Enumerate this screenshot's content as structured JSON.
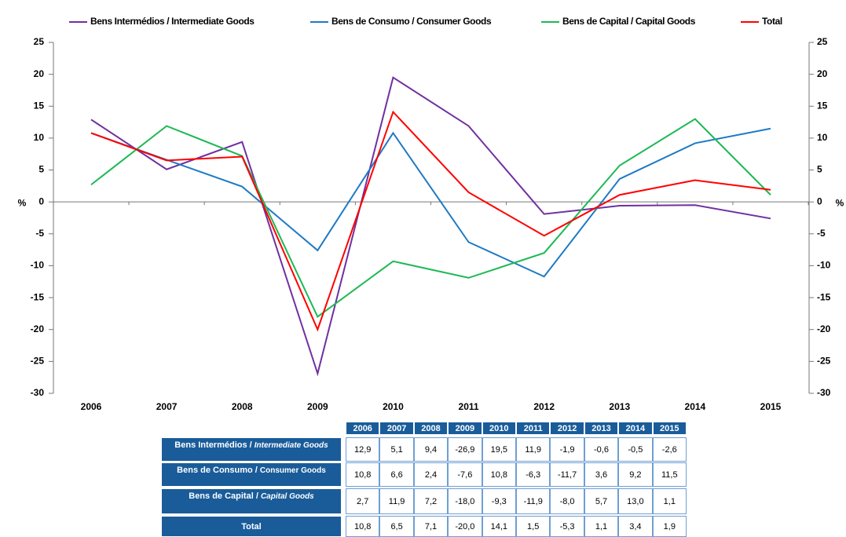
{
  "chart_data": {
    "type": "line",
    "categories": [
      "2006",
      "2007",
      "2008",
      "2009",
      "2010",
      "2011",
      "2012",
      "2013",
      "2014",
      "2015"
    ],
    "ylabel": "%",
    "y2label": "%",
    "ylim": [
      -30,
      25
    ],
    "yticks": [
      -30,
      -25,
      -20,
      -15,
      -10,
      -5,
      0,
      5,
      10,
      15,
      20,
      25
    ],
    "y2lim": [
      -30,
      25
    ],
    "y2ticks": [
      -30,
      -25,
      -20,
      -15,
      -10,
      -5,
      0,
      5,
      10,
      15,
      20,
      25
    ],
    "legend": "top",
    "series": [
      {
        "name": "Bens Intermédios / Intermediate Goods",
        "color": "#7030a0",
        "values": [
          12.9,
          5.1,
          9.4,
          -26.9,
          19.5,
          11.9,
          -1.9,
          -0.6,
          -0.5,
          -2.6
        ],
        "value_labels": [
          "12,9",
          "5,1",
          "9,4",
          "-26,9",
          "19,5",
          "11,9",
          "-1,9",
          "-0,6",
          "-0,5",
          "-2,6"
        ]
      },
      {
        "name": "Bens de Consumo / Consumer Goods",
        "color": "#1f7ac4",
        "values": [
          10.8,
          6.6,
          2.4,
          -7.6,
          10.8,
          -6.3,
          -11.7,
          3.6,
          9.2,
          11.5
        ],
        "value_labels": [
          "10,8",
          "6,6",
          "2,4",
          "-7,6",
          "10,8",
          "-6,3",
          "-11,7",
          "3,6",
          "9,2",
          "11,5"
        ]
      },
      {
        "name": "Bens de Capital / Capital Goods",
        "color": "#1db954",
        "values": [
          2.7,
          11.9,
          7.2,
          -18.0,
          -9.3,
          -11.9,
          -8.0,
          5.7,
          13.0,
          1.1
        ],
        "value_labels": [
          "2,7",
          "11,9",
          "7,2",
          "-18,0",
          "-9,3",
          "-11,9",
          "-8,0",
          "5,7",
          "13,0",
          "1,1"
        ]
      },
      {
        "name": "Total",
        "color": "#ff0000",
        "values": [
          10.8,
          6.5,
          7.1,
          -20.0,
          14.1,
          1.5,
          -5.3,
          1.1,
          3.4,
          1.9
        ],
        "value_labels": [
          "10,8",
          "6,5",
          "7,1",
          "-20,0",
          "14,1",
          "1,5",
          "-5,3",
          "1,1",
          "3,4",
          "1,9"
        ]
      }
    ],
    "table": {
      "row_labels": [
        {
          "main": "Bens Intermédios / ",
          "sub": "Intermediate Goods",
          "sub_italic": true
        },
        {
          "main": "Bens de Consumo / ",
          "sub": "Consumer Goods",
          "sub_italic": false
        },
        {
          "main": "Bens de Capital / ",
          "sub": "Capital Goods",
          "sub_italic": true
        },
        {
          "main": "Total"
        }
      ]
    }
  }
}
